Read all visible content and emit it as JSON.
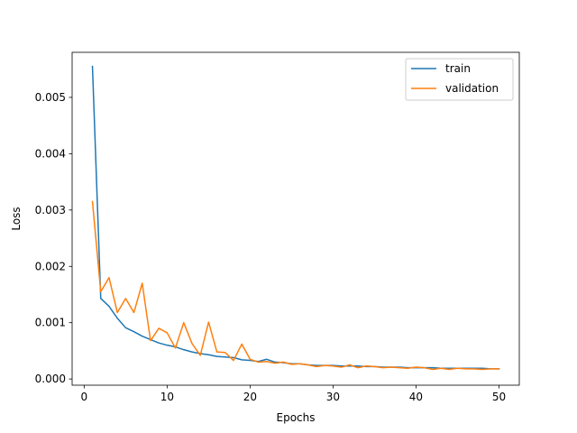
{
  "chart_data": {
    "type": "line",
    "title": "",
    "xlabel": "Epochs",
    "ylabel": "Loss",
    "xlim": [
      -1.45,
      52.45
    ],
    "ylim": [
      -0.00011,
      0.0058
    ],
    "xticks": [
      0,
      10,
      20,
      30,
      40,
      50
    ],
    "yticks": [
      0.0,
      0.001,
      0.002,
      0.003,
      0.004,
      0.005
    ],
    "ytick_labels": [
      "0.000",
      "0.001",
      "0.002",
      "0.003",
      "0.004",
      "0.005"
    ],
    "grid": false,
    "legend_position": "top-right",
    "x": [
      1,
      2,
      3,
      4,
      5,
      6,
      7,
      8,
      9,
      10,
      11,
      12,
      13,
      14,
      15,
      16,
      17,
      18,
      19,
      20,
      21,
      22,
      23,
      24,
      25,
      26,
      27,
      28,
      29,
      30,
      31,
      32,
      33,
      34,
      35,
      36,
      37,
      38,
      39,
      40,
      41,
      42,
      43,
      44,
      45,
      46,
      47,
      48,
      49,
      50
    ],
    "series": [
      {
        "name": "train",
        "color": "#1f77b4",
        "values": [
          0.00555,
          0.00143,
          0.00129,
          0.00108,
          0.00091,
          0.00084,
          0.00076,
          0.0007,
          0.00064,
          0.0006,
          0.00057,
          0.00052,
          0.00048,
          0.00045,
          0.00043,
          0.0004,
          0.00039,
          0.00038,
          0.00034,
          0.00033,
          0.00031,
          0.00035,
          0.0003,
          0.00029,
          0.00027,
          0.00027,
          0.00025,
          0.00024,
          0.00024,
          0.00024,
          0.00023,
          0.00023,
          0.00023,
          0.00022,
          0.00022,
          0.00021,
          0.00021,
          0.00021,
          0.0002,
          0.0002,
          0.0002,
          0.0002,
          0.00019,
          0.00019,
          0.00019,
          0.00019,
          0.00019,
          0.00019,
          0.00018,
          0.00018
        ]
      },
      {
        "name": "validation",
        "color": "#ff7f0e",
        "values": [
          0.00315,
          0.00155,
          0.0018,
          0.00118,
          0.00143,
          0.00118,
          0.0017,
          0.00068,
          0.0009,
          0.00082,
          0.00055,
          0.001,
          0.00063,
          0.00042,
          0.00101,
          0.00048,
          0.00047,
          0.00033,
          0.00062,
          0.00035,
          0.0003,
          0.00031,
          0.00028,
          0.0003,
          0.00026,
          0.00027,
          0.00025,
          0.00022,
          0.00024,
          0.00023,
          0.00021,
          0.00025,
          0.0002,
          0.00023,
          0.00022,
          0.0002,
          0.00021,
          0.0002,
          0.00019,
          0.00021,
          0.0002,
          0.00017,
          0.00019,
          0.00017,
          0.00019,
          0.00018,
          0.00018,
          0.00017,
          0.00018,
          0.00018
        ]
      }
    ]
  }
}
